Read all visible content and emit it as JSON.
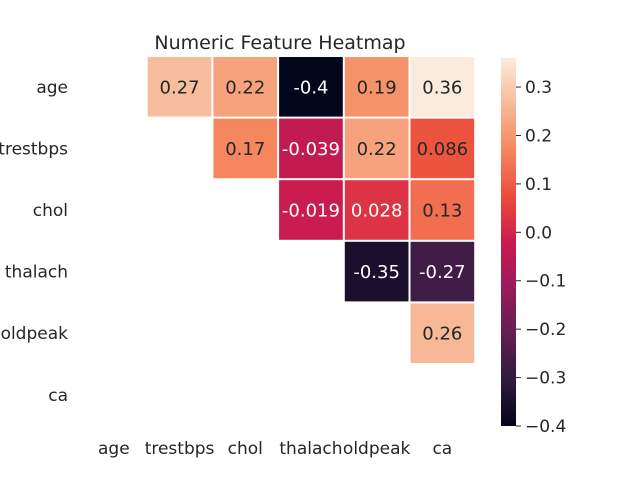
{
  "chart_data": {
    "type": "heatmap",
    "title": "Numeric Feature Heatmap",
    "variables": [
      "age",
      "trestbps",
      "chol",
      "thalach",
      "oldpeak",
      "ca"
    ],
    "mask": "lower-triangle-and-diagonal",
    "cells": [
      {
        "row": "age",
        "col": "trestbps",
        "value": 0.27,
        "label": "0.27"
      },
      {
        "row": "age",
        "col": "chol",
        "value": 0.22,
        "label": "0.22"
      },
      {
        "row": "age",
        "col": "thalach",
        "value": -0.4,
        "label": "-0.4"
      },
      {
        "row": "age",
        "col": "oldpeak",
        "value": 0.19,
        "label": "0.19"
      },
      {
        "row": "age",
        "col": "ca",
        "value": 0.36,
        "label": "0.36"
      },
      {
        "row": "trestbps",
        "col": "chol",
        "value": 0.17,
        "label": "0.17"
      },
      {
        "row": "trestbps",
        "col": "thalach",
        "value": -0.039,
        "label": "-0.039"
      },
      {
        "row": "trestbps",
        "col": "oldpeak",
        "value": 0.22,
        "label": "0.22"
      },
      {
        "row": "trestbps",
        "col": "ca",
        "value": 0.086,
        "label": "0.086"
      },
      {
        "row": "chol",
        "col": "thalach",
        "value": -0.019,
        "label": "-0.019"
      },
      {
        "row": "chol",
        "col": "oldpeak",
        "value": 0.028,
        "label": "0.028"
      },
      {
        "row": "chol",
        "col": "ca",
        "value": 0.13,
        "label": "0.13"
      },
      {
        "row": "thalach",
        "col": "oldpeak",
        "value": -0.35,
        "label": "-0.35"
      },
      {
        "row": "thalach",
        "col": "ca",
        "value": -0.27,
        "label": "-0.27"
      },
      {
        "row": "oldpeak",
        "col": "ca",
        "value": 0.26,
        "label": "0.26"
      }
    ],
    "colorbar": {
      "vmin": -0.4,
      "vmax": 0.36,
      "ticks": [
        0.3,
        0.2,
        0.1,
        0.0,
        -0.1,
        -0.2,
        -0.3,
        -0.4
      ],
      "tick_labels": [
        "0.3",
        "0.2",
        "0.1",
        "0.0",
        "−0.1",
        "−0.2",
        "−0.3",
        "−0.4"
      ],
      "colormap": "rocket"
    },
    "grid": false,
    "cell_border_color": "#ffffff"
  }
}
